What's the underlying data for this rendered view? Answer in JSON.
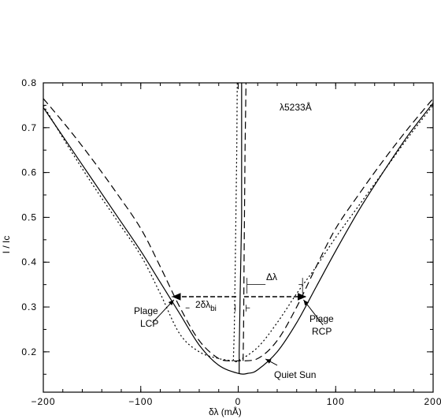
{
  "chart_data": {
    "type": "line",
    "title": "λ5233Å",
    "xlabel": "δλ   (mÅ)",
    "ylabel": "I / Ic",
    "xlim": [
      -200,
      200
    ],
    "ylim": [
      0.11,
      0.8
    ],
    "xticks": [
      -200,
      -100,
      0,
      100,
      200
    ],
    "xtick_labels": [
      "−200",
      "−100",
      "0",
      "100",
      "200"
    ],
    "yticks": [
      0.2,
      0.3,
      0.4,
      0.5,
      0.6,
      0.7,
      0.8
    ],
    "ytick_labels": [
      "0.2",
      "0.3",
      "0.4",
      "0.5",
      "0.6",
      "0.7",
      "0.8"
    ],
    "grid": false,
    "legend": "none",
    "series": [
      {
        "style": "solid",
        "x": [
          -200,
          -175,
          -150,
          -125,
          -100,
          -80,
          -60,
          -40,
          -20,
          0,
          10,
          20,
          40,
          60,
          80,
          100,
          125,
          150,
          175,
          200
        ],
        "y": [
          0.745,
          0.665,
          0.585,
          0.505,
          0.425,
          0.355,
          0.285,
          0.215,
          0.17,
          0.152,
          0.152,
          0.16,
          0.2,
          0.265,
          0.345,
          0.425,
          0.52,
          0.605,
          0.685,
          0.755
        ]
      },
      {
        "style": "dotted",
        "x": [
          -200,
          -175,
          -150,
          -125,
          -100,
          -80,
          -60,
          -40,
          -20,
          -5,
          0,
          20,
          40,
          60,
          80,
          100,
          125,
          150,
          175,
          200
        ],
        "y": [
          0.75,
          0.66,
          0.575,
          0.495,
          0.415,
          0.33,
          0.24,
          0.2,
          0.185,
          0.18,
          0.18,
          0.21,
          0.265,
          0.33,
          0.39,
          0.455,
          0.53,
          0.605,
          0.68,
          0.75
        ]
      },
      {
        "style": "dashed",
        "x": [
          -200,
          -175,
          -150,
          -125,
          -100,
          -80,
          -60,
          -40,
          -20,
          -5,
          0,
          20,
          40,
          60,
          80,
          100,
          125,
          150,
          175,
          200
        ],
        "y": [
          0.765,
          0.7,
          0.63,
          0.555,
          0.475,
          0.39,
          0.3,
          0.225,
          0.185,
          0.18,
          0.18,
          0.185,
          0.225,
          0.3,
          0.39,
          0.475,
          0.555,
          0.63,
          0.7,
          0.765
        ]
      }
    ],
    "bisector_lines": [
      {
        "style": "solid",
        "x": [
          1,
          1,
          2,
          3.5,
          3.5
        ],
        "y": [
          0.152,
          0.2,
          0.33,
          0.5,
          0.8
        ]
      },
      {
        "style": "dotted",
        "x": [
          -5,
          -4,
          -3,
          -1.5,
          -1
        ],
        "y": [
          0.18,
          0.25,
          0.4,
          0.65,
          0.8
        ]
      },
      {
        "style": "dashed",
        "x": [
          5,
          5.5,
          6,
          7,
          8
        ],
        "y": [
          0.18,
          0.25,
          0.4,
          0.65,
          0.8
        ]
      }
    ],
    "measure_level": 0.323,
    "annotations": {
      "delta_lambda": "Δλ",
      "two_delta_lambda_bi": "2δλ",
      "two_delta_lambda_bi_sub": "bi",
      "plage_lcp_line1": "Plage",
      "plage_lcp_line2": "LCP",
      "plage_rcp_line1": "Plage",
      "plage_rcp_line2": "RCP",
      "quiet_sun": "Quiet Sun"
    }
  }
}
